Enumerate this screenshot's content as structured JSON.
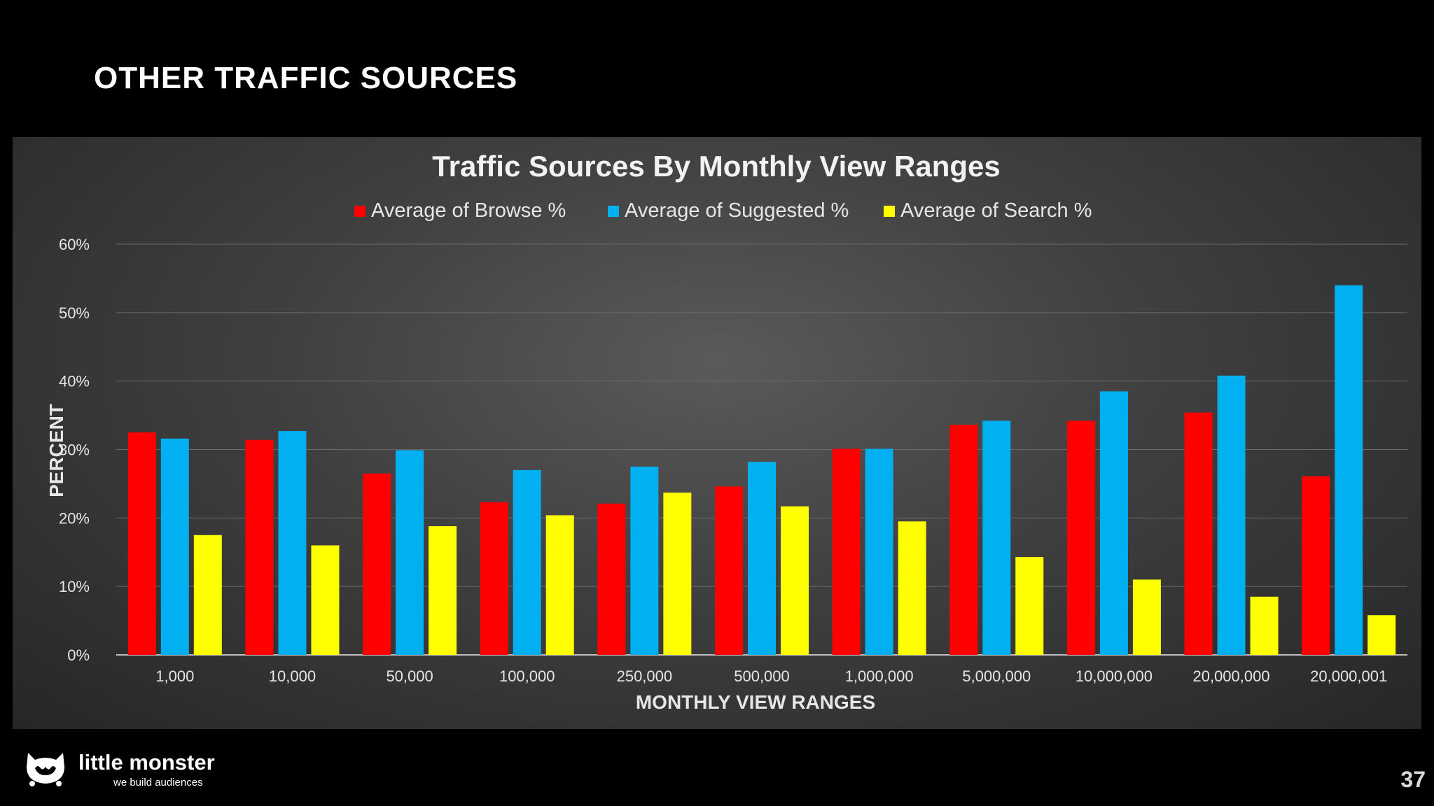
{
  "slide": {
    "title": "OTHER TRAFFIC SOURCES",
    "page_number": "37"
  },
  "logo": {
    "name": "little monster",
    "tagline": "we build audiences",
    "icon": "monster-face-icon"
  },
  "colors": {
    "browse": "#ff0000",
    "suggested": "#00b0f0",
    "search": "#ffff00",
    "grid": "#6a6a6a",
    "axis_text": "#e6e6e6"
  },
  "chart_data": {
    "type": "bar",
    "title": "Traffic Sources By Monthly View Ranges",
    "xlabel": "MONTHLY VIEW RANGES",
    "ylabel": "PERCENT",
    "ylim": [
      0,
      60
    ],
    "yticks": [
      "0%",
      "10%",
      "20%",
      "30%",
      "40%",
      "50%",
      "60%"
    ],
    "grid": true,
    "legend_position": "top",
    "categories": [
      "1,000",
      "10,000",
      "50,000",
      "100,000",
      "250,000",
      "500,000",
      "1,000,000",
      "5,000,000",
      "10,000,000",
      "20,000,000",
      "20,000,001"
    ],
    "series": [
      {
        "name": "Average of Browse %",
        "color": "#ff0000",
        "values": [
          32.5,
          31.4,
          26.5,
          22.3,
          22.1,
          24.6,
          30.1,
          33.6,
          34.2,
          35.4,
          26.1
        ]
      },
      {
        "name": "Average of Suggested %",
        "color": "#00b0f0",
        "values": [
          31.6,
          32.7,
          29.9,
          27.0,
          27.5,
          28.2,
          30.1,
          34.2,
          38.5,
          40.8,
          54.0
        ]
      },
      {
        "name": "Average of Search %",
        "color": "#ffff00",
        "values": [
          17.5,
          16.0,
          18.8,
          20.4,
          23.7,
          21.7,
          19.5,
          14.3,
          11.0,
          8.5,
          5.8
        ]
      }
    ]
  }
}
